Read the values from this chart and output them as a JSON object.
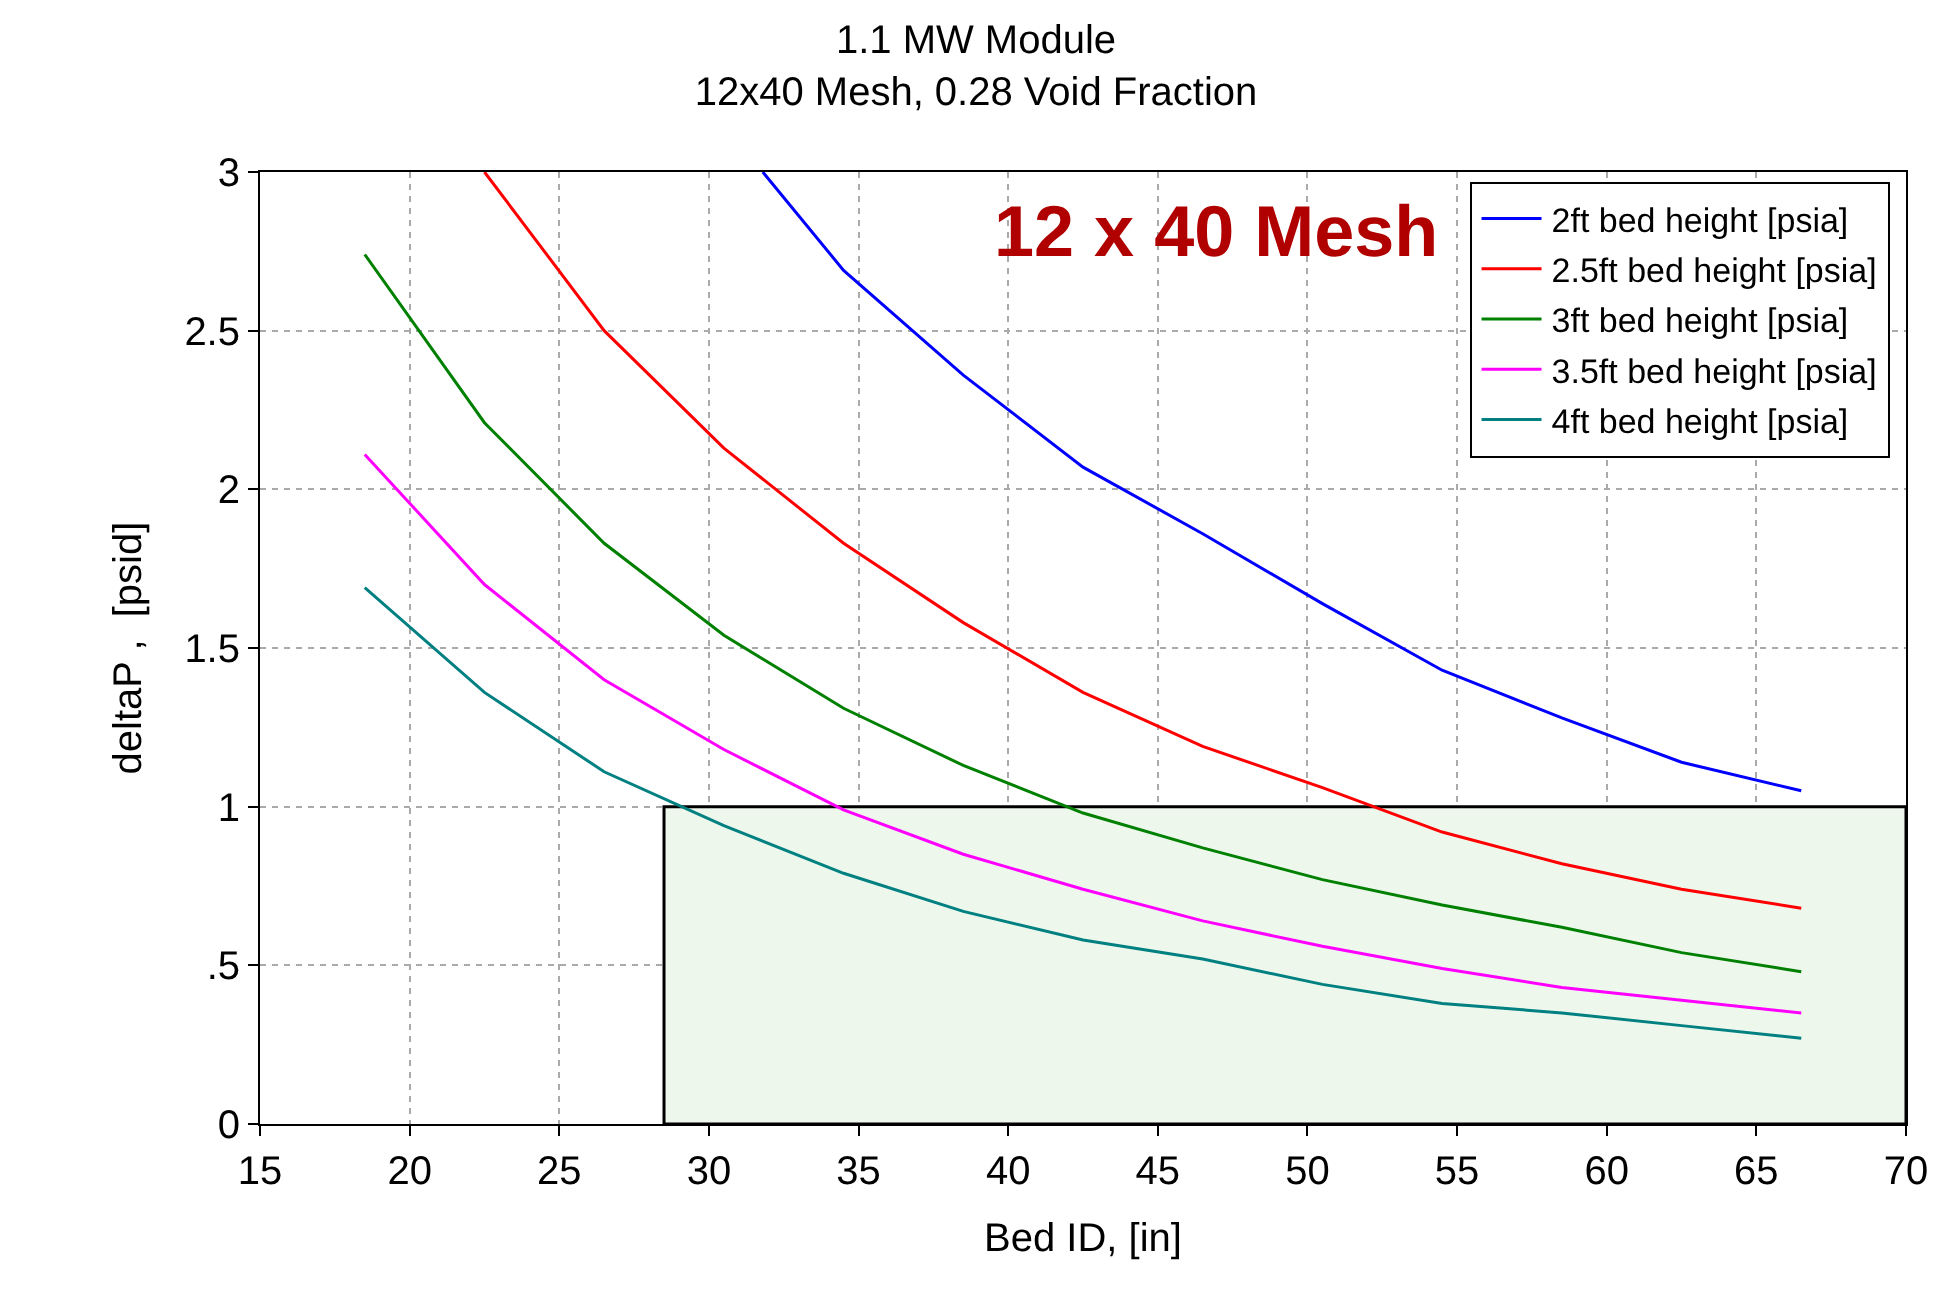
{
  "chart_data": {
    "type": "line",
    "title": "1.1 MW Module",
    "subtitle": "12x40 Mesh, 0.28 Void Fraction",
    "xlabel": "Bed ID, [in]",
    "ylabel": "deltaP ,  [psid]",
    "annotations": [
      "12 x 40 Mesh"
    ],
    "xlim": [
      15,
      70
    ],
    "xticks": [
      15,
      20,
      25,
      30,
      35,
      40,
      45,
      50,
      55,
      60,
      65,
      70
    ],
    "ylim": [
      0,
      3
    ],
    "yticks": [
      0,
      {
        "value": 0.5,
        "label": ".5"
      },
      1,
      1.5,
      2,
      2.5,
      3
    ],
    "grid": true,
    "legend": "top right",
    "marker": "none",
    "line_style": "solid",
    "series": [
      {
        "type": "area",
        "color": "#edf7ec",
        "x": [
          28.5,
          70
        ],
        "values": [
          1,
          1
        ]
      },
      {
        "name": "2ft bed height [psia]",
        "color": "#0000ff",
        "x": [
          31.8,
          34.5,
          38.5,
          42.5,
          46.5,
          50.5,
          54.5,
          58.5,
          62.5,
          66.5
        ],
        "values": [
          3.0,
          2.69,
          2.36,
          2.07,
          1.86,
          1.64,
          1.43,
          1.28,
          1.14,
          1.05
        ]
      },
      {
        "name": "2.5ft bed height [psia]",
        "color": "#ff0000",
        "x": [
          22.5,
          26.5,
          30.5,
          34.5,
          38.5,
          42.5,
          46.5,
          50.5,
          54.5,
          58.5,
          62.5,
          66.5
        ],
        "values": [
          3.0,
          2.5,
          2.13,
          1.83,
          1.58,
          1.36,
          1.19,
          1.06,
          0.92,
          0.82,
          0.74,
          0.68
        ]
      },
      {
        "name": "3ft bed height [psia]",
        "color": "#008000",
        "x": [
          18.5,
          22.5,
          26.5,
          30.5,
          34.5,
          38.5,
          42.5,
          46.5,
          50.5,
          54.5,
          58.5,
          62.5,
          66.5
        ],
        "values": [
          2.74,
          2.21,
          1.83,
          1.54,
          1.31,
          1.13,
          0.98,
          0.87,
          0.77,
          0.69,
          0.62,
          0.54,
          0.48
        ]
      },
      {
        "name": "3.5ft bed height [psia]",
        "color": "#ff00ff",
        "x": [
          18.5,
          22.5,
          26.5,
          30.5,
          34.5,
          38.5,
          42.5,
          46.5,
          50.5,
          54.5,
          58.5,
          62.5,
          66.5
        ],
        "values": [
          2.11,
          1.7,
          1.4,
          1.18,
          0.99,
          0.85,
          0.74,
          0.64,
          0.56,
          0.49,
          0.43,
          0.39,
          0.35
        ]
      },
      {
        "name": "4ft bed height [psia]",
        "color": "#008080",
        "x": [
          18.5,
          22.5,
          26.5,
          30.5,
          34.5,
          38.5,
          42.5,
          46.5,
          50.5,
          54.5,
          58.5,
          62.5,
          66.5
        ],
        "values": [
          1.69,
          1.36,
          1.11,
          0.94,
          0.79,
          0.67,
          0.58,
          0.52,
          0.44,
          0.38,
          0.35,
          0.31,
          0.27
        ]
      }
    ]
  }
}
